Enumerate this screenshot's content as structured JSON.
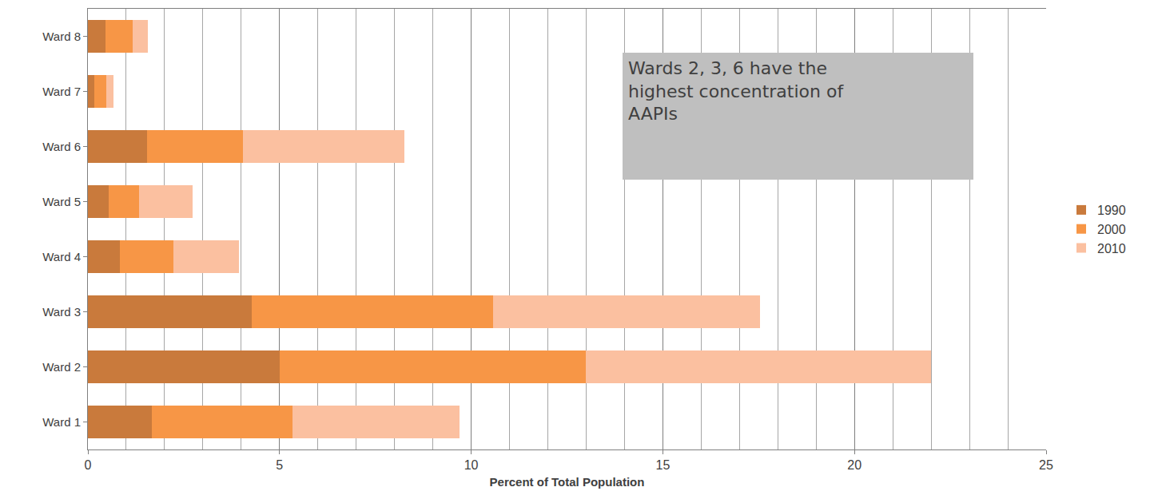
{
  "chart_data": {
    "type": "bar",
    "orientation": "horizontal",
    "stacked": true,
    "categories": [
      "Ward 1",
      "Ward 2",
      "Ward 3",
      "Ward 4",
      "Ward 5",
      "Ward 6",
      "Ward 7",
      "Ward 8"
    ],
    "series": [
      {
        "name": "1990",
        "color": "#c97a3c",
        "values": [
          1.67,
          5.0,
          4.28,
          0.84,
          0.54,
          1.55,
          0.17,
          0.46
        ]
      },
      {
        "name": "2000",
        "color": "#f79646",
        "values": [
          3.67,
          8.0,
          6.3,
          1.4,
          0.8,
          2.5,
          0.3,
          0.7
        ]
      },
      {
        "name": "2010",
        "color": "#fbc0a0",
        "values": [
          4.35,
          9.0,
          6.95,
          1.7,
          1.4,
          4.2,
          0.2,
          0.4
        ]
      }
    ],
    "x_label": "Percent of Total Population",
    "xlim": [
      0,
      25
    ],
    "xticks": [
      0,
      5,
      10,
      15,
      20,
      25
    ],
    "grid": true,
    "legend": "right",
    "annotations": [
      "Wards 2, 3, 6 have the highest concentration of AAPIs"
    ]
  }
}
